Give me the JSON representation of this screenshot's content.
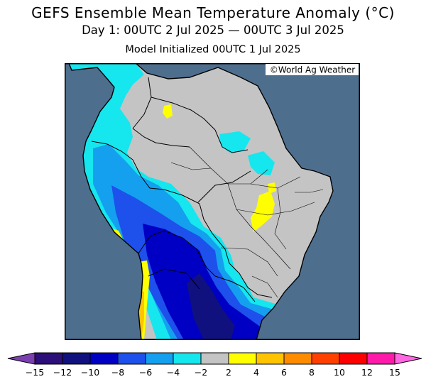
{
  "header": {
    "title": "GEFS Ensemble Mean Temperature Anomaly (°C)",
    "valid_period": "Day 1: 00UTC 2 Jul 2025 — 00UTC 3 Jul 2025",
    "init": "Model Initialized 00UTC 1 Jul 2025"
  },
  "map": {
    "credit": "©World Ag Weather",
    "ocean_color": "#4e6e8e",
    "neutral_color": "#c4c4c4",
    "border_color": "#000000"
  },
  "legend": {
    "ticks": [
      "−15",
      "−12",
      "−10",
      "−8",
      "−6",
      "−4",
      "−2",
      "2",
      "4",
      "6",
      "8",
      "10",
      "12",
      "15"
    ],
    "under_color": "#7b3fb0",
    "over_color": "#ff66e0",
    "colors": [
      "#2c0f78",
      "#10107f",
      "#0000c4",
      "#1e50ec",
      "#14a0ee",
      "#16e6ee",
      "#c4c4c4",
      "#ffff00",
      "#ffc400",
      "#ff8c00",
      "#ff4000",
      "#ff0000",
      "#ff1aaa"
    ]
  }
}
